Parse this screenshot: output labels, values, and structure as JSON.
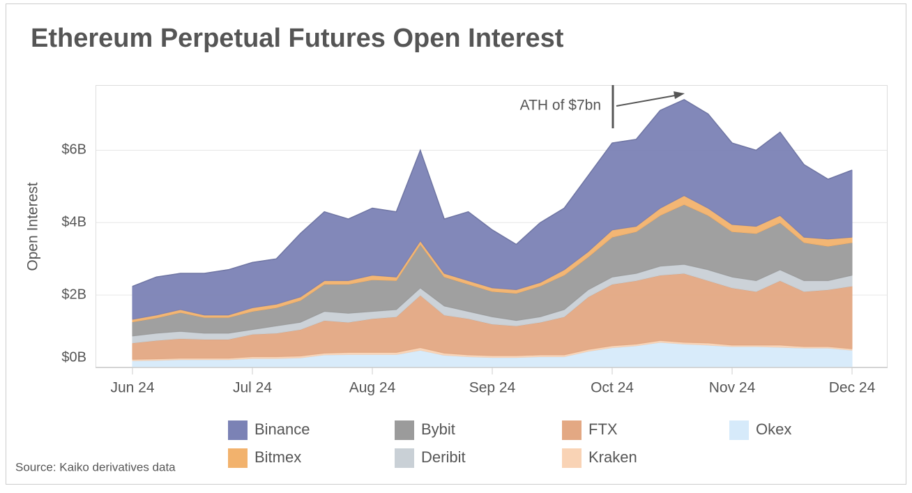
{
  "chart_data": {
    "type": "stacked-area",
    "title": "Ethereum Perpetual Futures Open Interest",
    "y_label": "Open Interest",
    "source": "Source: Kaiko derivatives data",
    "annotation": "ATH of $7bn",
    "categories": [
      "Jun 24",
      null,
      null,
      null,
      null,
      "Jul 24",
      null,
      null,
      null,
      null,
      "Aug 24",
      null,
      null,
      null,
      null,
      "Sep 24",
      null,
      null,
      null,
      null,
      "Oct 24",
      null,
      null,
      null,
      null,
      "Nov 24",
      null,
      null,
      null,
      null,
      "Dec 24"
    ],
    "series": [
      {
        "name": "Okex",
        "color": "#d6eafa",
        "values": [
          0.19,
          0.2,
          0.22,
          0.22,
          0.22,
          0.25,
          0.25,
          0.27,
          0.35,
          0.36,
          0.36,
          0.36,
          0.48,
          0.34,
          0.3,
          0.28,
          0.28,
          0.3,
          0.3,
          0.45,
          0.55,
          0.6,
          0.7,
          0.65,
          0.62,
          0.58,
          0.58,
          0.56,
          0.54,
          0.54,
          0.48
        ]
      },
      {
        "name": "Kraken",
        "color": "#f9d3b5",
        "values": [
          0.04,
          0.04,
          0.04,
          0.04,
          0.04,
          0.05,
          0.05,
          0.05,
          0.05,
          0.06,
          0.06,
          0.06,
          0.07,
          0.06,
          0.05,
          0.05,
          0.05,
          0.05,
          0.05,
          0.05,
          0.05,
          0.05,
          0.05,
          0.05,
          0.06,
          0.04,
          0.04,
          0.06,
          0.04,
          0.04,
          0.04
        ]
      },
      {
        "name": "FTX",
        "color": "#e3a883",
        "values": [
          0.45,
          0.51,
          0.54,
          0.52,
          0.52,
          0.62,
          0.65,
          0.73,
          0.9,
          0.83,
          0.93,
          0.98,
          1.45,
          1.05,
          1.0,
          0.87,
          0.82,
          0.9,
          1.05,
          1.45,
          1.7,
          1.75,
          1.8,
          1.9,
          1.72,
          1.58,
          1.48,
          1.78,
          1.52,
          1.57,
          1.73
        ]
      },
      {
        "name": "Deribit",
        "color": "#c9d0d6",
        "values": [
          0.19,
          0.2,
          0.2,
          0.17,
          0.17,
          0.13,
          0.2,
          0.2,
          0.25,
          0.25,
          0.2,
          0.2,
          0.2,
          0.25,
          0.2,
          0.2,
          0.15,
          0.15,
          0.2,
          0.2,
          0.2,
          0.2,
          0.25,
          0.25,
          0.3,
          0.3,
          0.3,
          0.3,
          0.3,
          0.25,
          0.3
        ]
      },
      {
        "name": "Bybit",
        "color": "#9b9b9b",
        "values": [
          0.39,
          0.42,
          0.52,
          0.43,
          0.43,
          0.5,
          0.5,
          0.6,
          0.75,
          0.8,
          0.87,
          0.8,
          1.2,
          0.8,
          0.75,
          0.7,
          0.75,
          0.85,
          0.95,
          0.9,
          1.1,
          1.15,
          1.4,
          1.65,
          1.5,
          1.25,
          1.3,
          1.3,
          1.05,
          0.95,
          0.9
        ]
      },
      {
        "name": "Bitmex",
        "color": "#f2b26d",
        "values": [
          0.07,
          0.08,
          0.08,
          0.07,
          0.07,
          0.1,
          0.1,
          0.1,
          0.1,
          0.1,
          0.13,
          0.1,
          0.1,
          0.1,
          0.1,
          0.1,
          0.1,
          0.1,
          0.15,
          0.15,
          0.2,
          0.15,
          0.2,
          0.25,
          0.2,
          0.2,
          0.2,
          0.2,
          0.15,
          0.2,
          0.15
        ]
      },
      {
        "name": "Binance",
        "color": "#7b82b5",
        "values": [
          0.91,
          1.05,
          1.0,
          1.15,
          1.25,
          1.25,
          1.25,
          1.75,
          1.9,
          1.7,
          1.85,
          1.8,
          2.5,
          1.5,
          1.9,
          1.6,
          1.25,
          1.65,
          1.7,
          2.1,
          2.4,
          2.4,
          2.7,
          2.65,
          2.6,
          2.25,
          2.1,
          2.3,
          2.0,
          1.65,
          1.85
        ]
      }
    ],
    "ylim": [
      0,
      7.8
    ],
    "yticks": [
      {
        "value": 0,
        "label": "$0B"
      },
      {
        "value": 2,
        "label": "$2B"
      },
      {
        "value": 4,
        "label": "$4B"
      },
      {
        "value": 6,
        "label": "$6B"
      }
    ],
    "grid": true
  }
}
